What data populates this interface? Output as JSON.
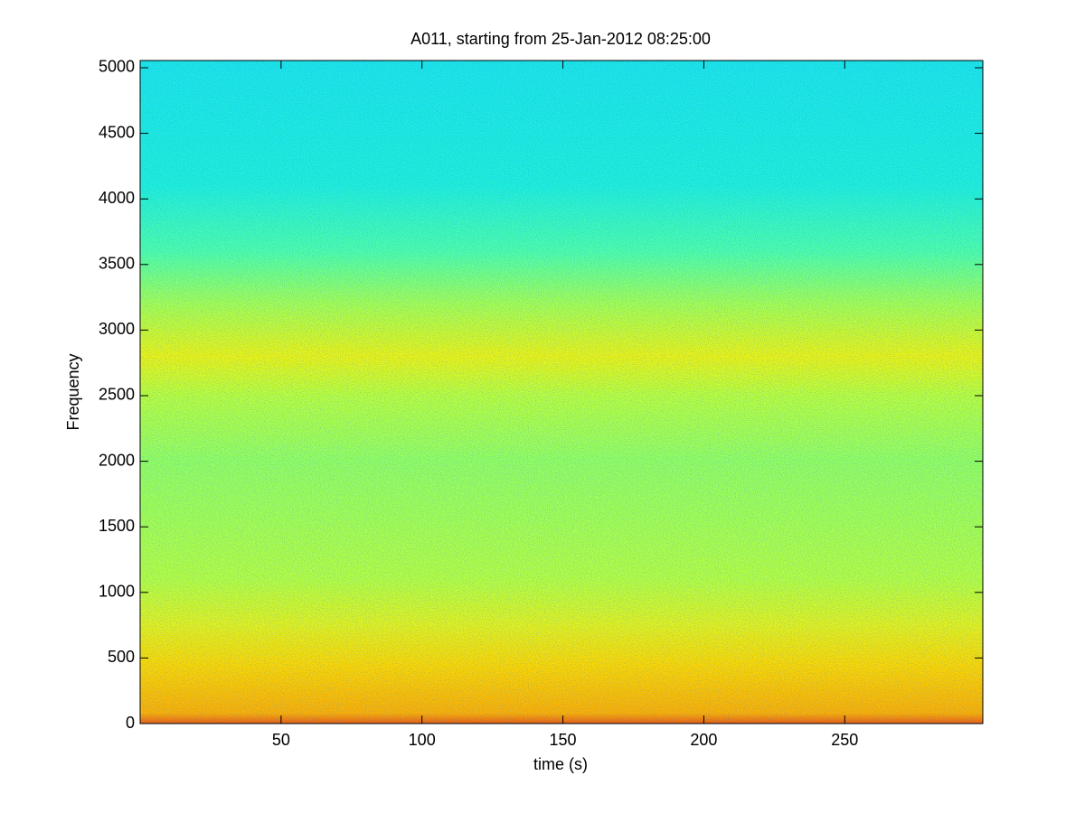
{
  "chart_data": {
    "type": "spectrogram",
    "title": "A011, starting from 25-Jan-2012 08:25:00",
    "x_label": "time (s)",
    "y_label": "Frequency",
    "xlim": [
      0,
      299
    ],
    "ylim": [
      0,
      5055
    ],
    "xticks": [
      50,
      100,
      150,
      200,
      250
    ],
    "yticks": [
      0,
      500,
      1000,
      1500,
      2000,
      2500,
      3000,
      3500,
      4000,
      4500,
      5000
    ],
    "colormap": "jet",
    "color_by_frequency": [
      {
        "frequency": 0,
        "color": "#f06010"
      },
      {
        "frequency": 80,
        "color": "#ffb000"
      },
      {
        "frequency": 450,
        "color": "#ffd800"
      },
      {
        "frequency": 750,
        "color": "#e6f21c"
      },
      {
        "frequency": 1100,
        "color": "#b8ff40"
      },
      {
        "frequency": 2000,
        "color": "#96ff60"
      },
      {
        "frequency": 2500,
        "color": "#bcff3c"
      },
      {
        "frequency": 2800,
        "color": "#eef412"
      },
      {
        "frequency": 3200,
        "color": "#a8ff50"
      },
      {
        "frequency": 3600,
        "color": "#50ffa8"
      },
      {
        "frequency": 4100,
        "color": "#22f0d8"
      },
      {
        "frequency": 5055,
        "color": "#1ee6e6"
      }
    ]
  }
}
